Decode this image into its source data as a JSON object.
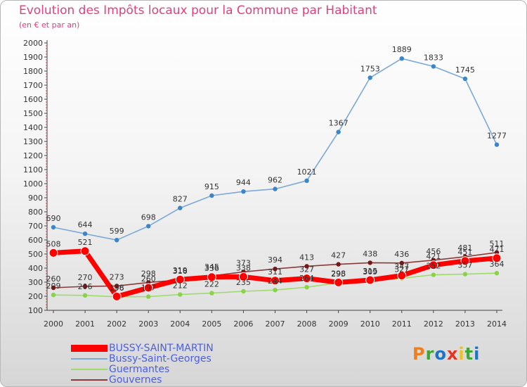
{
  "page": {
    "title": "Evolution des Impôts locaux pour la Commune par Habitant",
    "subtitle": "(en € et par an)"
  },
  "logo": {
    "text": "Proxiti",
    "colors": [
      "#f07d1e",
      "#3fa535",
      "#1f73c4",
      "#e63422",
      "#f0bf1e",
      "#3fa535",
      "#1f73c4"
    ]
  },
  "chart_data": {
    "type": "line",
    "title": "Evolution des Impôts locaux pour la Commune par Habitant",
    "subtitle": "(en € et par an)",
    "x": [
      "2000",
      "2001",
      "2002",
      "2003",
      "2004",
      "2005",
      "2006",
      "2007",
      "2008",
      "2009",
      "2010",
      "2011",
      "2012",
      "2013",
      "2014"
    ],
    "ylim": [
      100,
      2000
    ],
    "yticks": [
      100,
      200,
      300,
      400,
      500,
      600,
      700,
      800,
      900,
      1000,
      1100,
      1200,
      1300,
      1400,
      1500,
      1600,
      1700,
      1800,
      1900,
      2000
    ],
    "grid": false,
    "legend_position": "bottom-left",
    "series": [
      {
        "name": "BUSSY-SAINT-MARTIN",
        "color": "#ff0000",
        "marker": "#ff0000",
        "values": [
          508,
          521,
          198,
          260,
          319,
          336,
          338,
          311,
          327,
          298,
          315,
          347,
          421,
          451,
          471
        ]
      },
      {
        "name": "Bussy-Saint-Georges",
        "color": "#7ba9d8",
        "marker": "#3a86c8",
        "values": [
          690,
          644,
          599,
          698,
          827,
          915,
          944,
          962,
          1021,
          1367,
          1753,
          1889,
          1833,
          1745,
          1277
        ]
      },
      {
        "name": "Guermantes",
        "color": "#9edc6a",
        "marker": "#8ad24a",
        "values": [
          209,
          206,
          196,
          197,
          212,
          222,
          235,
          244,
          264,
          295,
          309,
          327,
          352,
          357,
          364
        ]
      },
      {
        "name": "Gouvernes",
        "color": "#8a3a3a",
        "marker": "#7a1515",
        "values": [
          260,
          270,
          273,
          298,
          316,
          345,
          373,
          394,
          413,
          427,
          438,
          436,
          456,
          481,
          511
        ]
      }
    ]
  }
}
